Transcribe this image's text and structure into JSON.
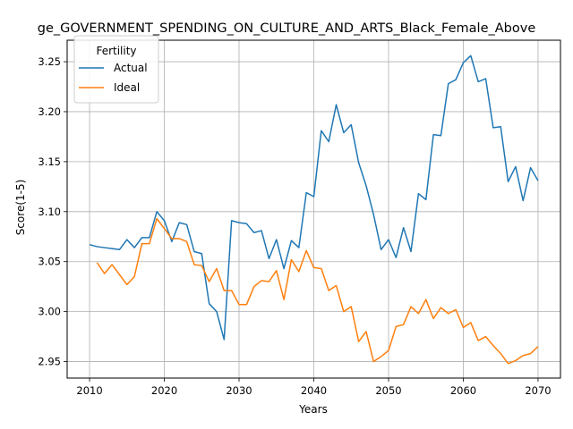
{
  "chart_data": {
    "type": "line",
    "title": "ge_GOVERNMENT_SPENDING_ON_CULTURE_AND_ARTS_Black_Female_Above",
    "xlabel": "Years",
    "ylabel": "Score(1-5)",
    "xlim": [
      2007,
      2073
    ],
    "ylim": [
      2.9335,
      3.2715
    ],
    "xticks": [
      2010,
      2020,
      2030,
      2040,
      2050,
      2060,
      2070
    ],
    "yticks": [
      2.95,
      3.0,
      3.05,
      3.1,
      3.15,
      3.2,
      3.25
    ],
    "ytick_labels": [
      "2.95",
      "3.00",
      "3.05",
      "3.10",
      "3.15",
      "3.20",
      "3.25"
    ],
    "grid": true,
    "legend": {
      "title": "Fertility",
      "placement": "top-left"
    },
    "series": [
      {
        "name": "Actual",
        "color": "#1f77b4",
        "x": [
          2010,
          2011,
          2012,
          2013,
          2014,
          2015,
          2016,
          2017,
          2018,
          2019,
          2020,
          2021,
          2022,
          2023,
          2024,
          2025,
          2026,
          2027,
          2028,
          2029,
          2030,
          2031,
          2032,
          2033,
          2034,
          2035,
          2036,
          2037,
          2038,
          2039,
          2040,
          2041,
          2042,
          2043,
          2044,
          2045,
          2046,
          2047,
          2048,
          2049,
          2050,
          2051,
          2052,
          2053,
          2054,
          2055,
          2056,
          2057,
          2058,
          2059,
          2060,
          2061,
          2062,
          2063,
          2064,
          2065,
          2066,
          2067,
          2068,
          2069,
          2070
        ],
        "values": [
          3.067,
          3.065,
          3.064,
          3.063,
          3.062,
          3.072,
          3.064,
          3.074,
          3.074,
          3.1,
          3.091,
          3.07,
          3.089,
          3.087,
          3.06,
          3.058,
          3.008,
          3.0,
          2.972,
          3.091,
          3.089,
          3.088,
          3.079,
          3.081,
          3.053,
          3.072,
          3.043,
          3.071,
          3.064,
          3.119,
          3.115,
          3.181,
          3.17,
          3.207,
          3.179,
          3.187,
          3.149,
          3.126,
          3.097,
          3.062,
          3.072,
          3.054,
          3.084,
          3.06,
          3.118,
          3.112,
          3.177,
          3.176,
          3.228,
          3.232,
          3.249,
          3.256,
          3.23,
          3.233,
          3.184,
          3.185,
          3.13,
          3.145,
          3.111,
          3.144,
          3.131
        ]
      },
      {
        "name": "Ideal",
        "color": "#ff7f0e",
        "x": [
          2011,
          2012,
          2013,
          2014,
          2015,
          2016,
          2017,
          2018,
          2019,
          2020,
          2021,
          2022,
          2023,
          2024,
          2025,
          2026,
          2027,
          2028,
          2029,
          2030,
          2031,
          2032,
          2033,
          2034,
          2035,
          2036,
          2037,
          2038,
          2039,
          2040,
          2041,
          2042,
          2043,
          2044,
          2045,
          2046,
          2047,
          2048,
          2049,
          2050,
          2051,
          2052,
          2053,
          2054,
          2055,
          2056,
          2057,
          2058,
          2059,
          2060,
          2061,
          2062,
          2063,
          2064,
          2065,
          2066,
          2067,
          2068,
          2069,
          2070
        ],
        "values": [
          3.049,
          3.038,
          3.047,
          3.037,
          3.027,
          3.035,
          3.068,
          3.068,
          3.093,
          3.083,
          3.073,
          3.073,
          3.07,
          3.047,
          3.046,
          3.03,
          3.043,
          3.021,
          3.021,
          3.007,
          3.007,
          3.025,
          3.031,
          3.03,
          3.041,
          3.012,
          3.052,
          3.04,
          3.061,
          3.044,
          3.043,
          3.021,
          3.026,
          3.0,
          3.005,
          2.97,
          2.98,
          2.95,
          2.955,
          2.961,
          2.985,
          2.987,
          3.005,
          2.998,
          3.012,
          2.993,
          3.004,
          2.998,
          3.002,
          2.984,
          2.989,
          2.971,
          2.975,
          2.966,
          2.958,
          2.948,
          2.951,
          2.956,
          2.958,
          2.965
        ]
      }
    ]
  }
}
